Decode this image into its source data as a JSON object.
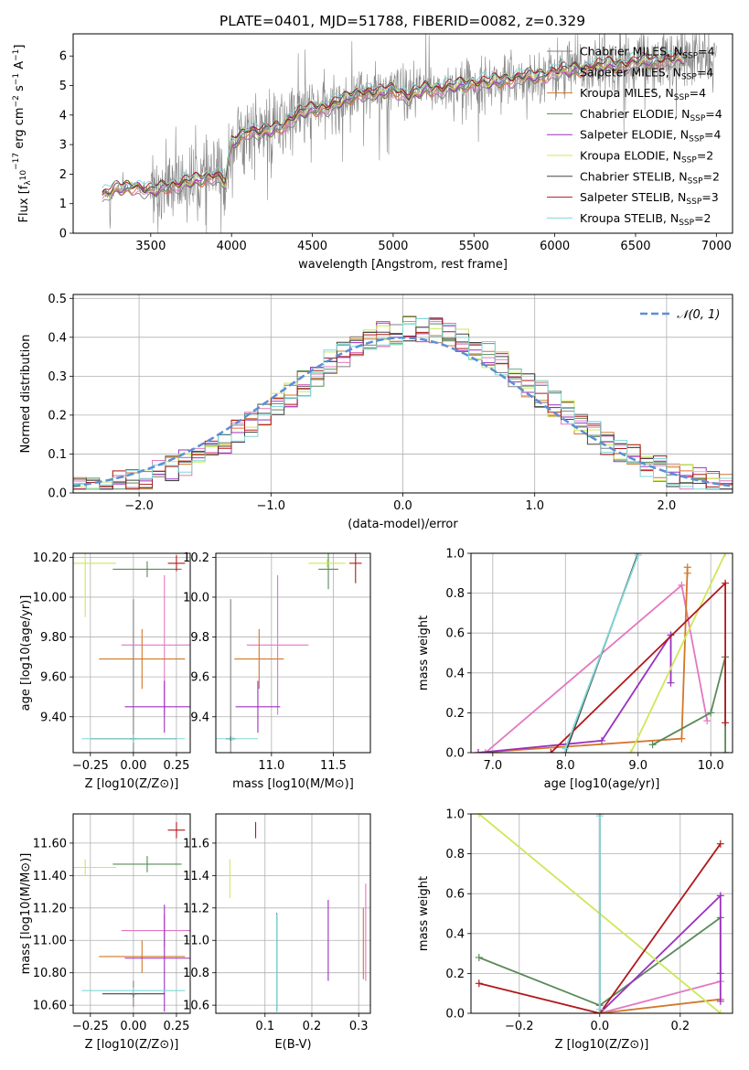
{
  "title": "PLATE=0401, MJD=51788, FIBERID=0082, z=0.329",
  "models": [
    {
      "key": "chabrier_miles",
      "label": "Chabrier MILES, N",
      "sub": "SSP",
      "tail": "=4",
      "color": "#808080"
    },
    {
      "key": "salpeter_miles",
      "label": "Salpeter MILES, N",
      "sub": "SSP",
      "tail": "=4",
      "color": "#e377c2"
    },
    {
      "key": "kroupa_miles",
      "label": "Kroupa MILES, N",
      "sub": "SSP",
      "tail": "=4",
      "color": "#d2772a"
    },
    {
      "key": "chabrier_elodie",
      "label": "Chabrier ELODIE, N",
      "sub": "SSP",
      "tail": "=4",
      "color": "#5a8a5a"
    },
    {
      "key": "salpeter_elodie",
      "label": "Salpeter ELODIE, N",
      "sub": "SSP",
      "tail": "=4",
      "color": "#9b30c0"
    },
    {
      "key": "kroupa_elodie",
      "label": "Kroupa ELODIE, N",
      "sub": "SSP",
      "tail": "=2",
      "color": "#cde85a"
    },
    {
      "key": "chabrier_stelib",
      "label": "Chabrier STELIB, N",
      "sub": "SSP",
      "tail": "=2",
      "color": "#444444"
    },
    {
      "key": "salpeter_stelib",
      "label": "Salpeter STELIB, N",
      "sub": "SSP",
      "tail": "=3",
      "color": "#b0191c"
    },
    {
      "key": "kroupa_stelib",
      "label": "Kroupa STELIB, N",
      "sub": "SSP",
      "tail": "=2",
      "color": "#7fd8d8"
    }
  ],
  "chart_data": [
    {
      "type": "line",
      "id": "spectrum",
      "xlabel": "wavelength [Angstrom, rest frame]",
      "ylabel_parts": [
        "Flux [f",
        "λ",
        "10",
        "−17",
        " erg cm",
        "−2",
        " s",
        "−1",
        " A",
        "−1",
        "]"
      ],
      "xlim": [
        3020,
        7100
      ],
      "ylim": [
        0,
        6.75
      ],
      "xticks": [
        3500,
        4000,
        4500,
        5000,
        5500,
        6000,
        6500,
        7000
      ],
      "yticks": [
        0,
        1,
        2,
        3,
        4,
        5,
        6
      ],
      "model_spectrum": {
        "x": [
          3200,
          3300,
          3400,
          3500,
          3600,
          3700,
          3800,
          3900,
          3960,
          4000,
          4100,
          4200,
          4300,
          4400,
          4500,
          4600,
          4700,
          4800,
          4900,
          5000,
          5100,
          5200,
          5300,
          5400,
          5500,
          5600,
          5700,
          5800,
          5900,
          6000,
          6100,
          6200,
          6300,
          6400,
          6500,
          6600,
          6700,
          6800
        ],
        "y": [
          1.3,
          1.5,
          1.6,
          1.4,
          1.6,
          1.7,
          1.8,
          2.0,
          1.7,
          3.0,
          3.5,
          3.4,
          3.6,
          4.0,
          4.2,
          4.3,
          4.5,
          4.8,
          4.7,
          4.9,
          4.6,
          4.9,
          4.9,
          5.0,
          5.1,
          5.1,
          5.2,
          5.3,
          5.3,
          5.5,
          5.5,
          5.6,
          5.7,
          5.7,
          5.8,
          5.8,
          5.9,
          5.9
        ]
      },
      "data_range": [
        3200,
        7000
      ]
    },
    {
      "type": "line",
      "id": "residuals",
      "xlabel": "(data-model)/error",
      "ylabel": "Normed distribution",
      "xlim": [
        -2.5,
        2.5
      ],
      "ylim": [
        0,
        0.51
      ],
      "xticks": [
        -2,
        -1,
        0,
        1,
        2
      ],
      "yticks": [
        0,
        0.1,
        0.2,
        0.3,
        0.4,
        0.5
      ],
      "legend": "𝒩(0, 1)",
      "gaussian_color": "#5a8fd6"
    },
    {
      "type": "scatter",
      "id": "age_vs_Z",
      "xlabel": "Z [log10(Z/Z⊙)]",
      "ylabel": "age  [log10(age/yr)]",
      "xlim": [
        -0.35,
        0.33
      ],
      "ylim": [
        9.22,
        10.22
      ],
      "xticks": [
        -0.25,
        0,
        0.25
      ],
      "yticks": [
        9.4,
        9.6,
        9.8,
        10.0,
        10.2
      ],
      "points": [
        {
          "m": "chabrier_miles",
          "x": 0.0,
          "y": 9.29,
          "xerr": 0.02,
          "yerr": 0.7
        },
        {
          "m": "salpeter_miles",
          "x": 0.18,
          "y": 9.76,
          "xerr": 0.25,
          "yerr": 0.35
        },
        {
          "m": "kroupa_miles",
          "x": 0.05,
          "y": 9.69,
          "xerr": 0.25,
          "yerr": 0.15
        },
        {
          "m": "chabrier_elodie",
          "x": 0.08,
          "y": 10.14,
          "xerr": 0.2,
          "yerr": 0.04
        },
        {
          "m": "salpeter_elodie",
          "x": 0.18,
          "y": 9.45,
          "xerr": 0.23,
          "yerr": 0.13
        },
        {
          "m": "kroupa_elodie",
          "x": -0.28,
          "y": 10.17,
          "xerr": 0.18,
          "yerr": 0.27
        },
        {
          "m": "chabrier_stelib",
          "x": 0.0,
          "y": 9.29,
          "xerr": 0.25,
          "yerr": 0.01
        },
        {
          "m": "salpeter_stelib",
          "x": 0.25,
          "y": 10.17,
          "xerr": 0.05,
          "yerr": 0.04
        },
        {
          "m": "kroupa_stelib",
          "x": 0.0,
          "y": 9.29,
          "xerr": 0.3,
          "yerr": 0.02
        }
      ]
    },
    {
      "type": "scatter",
      "id": "age_vs_mass",
      "xlabel": "mass [log10(M/M⊙)]",
      "ylabel": "",
      "xlim": [
        10.55,
        11.8
      ],
      "ylim": [
        9.22,
        10.22
      ],
      "xticks": [
        11.0,
        11.5
      ],
      "yticks": [
        9.4,
        9.6,
        9.8,
        10.0,
        10.2
      ],
      "points": [
        {
          "m": "chabrier_miles",
          "x": 10.67,
          "y": 9.29,
          "xerr": 0.02,
          "yerr": 0.7
        },
        {
          "m": "salpeter_miles",
          "x": 11.05,
          "y": 9.76,
          "xerr": 0.25,
          "yerr": 0.35
        },
        {
          "m": "kroupa_miles",
          "x": 10.9,
          "y": 9.69,
          "xerr": 0.2,
          "yerr": 0.15
        },
        {
          "m": "chabrier_elodie",
          "x": 11.46,
          "y": 10.14,
          "xerr": 0.08,
          "yerr": 0.1
        },
        {
          "m": "salpeter_elodie",
          "x": 10.89,
          "y": 9.45,
          "xerr": 0.18,
          "yerr": 0.13
        },
        {
          "m": "kroupa_elodie",
          "x": 11.45,
          "y": 10.17,
          "xerr": 0.15,
          "yerr": 0.02
        },
        {
          "m": "chabrier_stelib",
          "x": 10.67,
          "y": 9.29,
          "xerr": 0.04,
          "yerr": 0.01
        },
        {
          "m": "salpeter_stelib",
          "x": 11.68,
          "y": 10.17,
          "xerr": 0.05,
          "yerr": 0.1
        },
        {
          "m": "kroupa_stelib",
          "x": 10.69,
          "y": 9.29,
          "xerr": 0.2,
          "yerr": 0.01
        }
      ]
    },
    {
      "type": "line",
      "id": "mass_weight_vs_age",
      "xlabel": "age  [log10(age/yr)]",
      "ylabel": "mass weight",
      "xlim": [
        6.7,
        10.3
      ],
      "ylim": [
        0,
        1.0
      ],
      "xticks": [
        7,
        8,
        9,
        10
      ],
      "yticks": [
        0,
        0.2,
        0.4,
        0.6,
        0.8,
        1.0
      ],
      "series": [
        {
          "m": "salpeter_miles",
          "x": [
            6.9,
            9.6,
            9.95
          ],
          "y": [
            0.0,
            0.84,
            0.16
          ]
        },
        {
          "m": "kroupa_miles",
          "x": [
            6.8,
            9.6,
            9.68,
            9.68
          ],
          "y": [
            0.0,
            0.07,
            0.93,
            0.9
          ]
        },
        {
          "m": "chabrier_elodie",
          "x": [
            9.2,
            10.0,
            10.2,
            10.2
          ],
          "y": [
            0.04,
            0.2,
            0.48,
            0.0
          ]
        },
        {
          "m": "salpeter_elodie",
          "x": [
            6.8,
            8.5,
            9.45,
            9.45
          ],
          "y": [
            0.0,
            0.06,
            0.59,
            0.35
          ]
        },
        {
          "m": "kroupa_elodie",
          "x": [
            8.9,
            10.2
          ],
          "y": [
            0.0,
            1.0
          ]
        },
        {
          "m": "chabrier_stelib",
          "x": [
            8.0,
            9.0
          ],
          "y": [
            0.0,
            1.0
          ]
        },
        {
          "m": "salpeter_stelib",
          "x": [
            7.8,
            10.2,
            10.2
          ],
          "y": [
            0.0,
            0.85,
            0.15
          ]
        },
        {
          "m": "kroupa_stelib",
          "x": [
            8.0,
            9.0
          ],
          "y": [
            0.02,
            0.99
          ]
        }
      ]
    },
    {
      "type": "scatter",
      "id": "mass_vs_Z",
      "xlabel": "Z [log10(Z/Z⊙)]",
      "ylabel": "mass [log10(M/M⊙)]",
      "xlim": [
        -0.35,
        0.33
      ],
      "ylim": [
        10.55,
        11.78
      ],
      "xticks": [
        -0.25,
        0,
        0.25
      ],
      "yticks": [
        10.6,
        10.8,
        11.0,
        11.2,
        11.4,
        11.6
      ],
      "points": [
        {
          "m": "chabrier_miles",
          "x": 0.0,
          "y": 10.67,
          "xerr": 0.02,
          "yerr": 0.08
        },
        {
          "m": "salpeter_miles",
          "x": 0.18,
          "y": 11.06,
          "xerr": 0.25,
          "yerr": 0.1
        },
        {
          "m": "kroupa_miles",
          "x": 0.05,
          "y": 10.9,
          "xerr": 0.25,
          "yerr": 0.1
        },
        {
          "m": "chabrier_elodie",
          "x": 0.08,
          "y": 11.47,
          "xerr": 0.2,
          "yerr": 0.05
        },
        {
          "m": "salpeter_elodie",
          "x": 0.18,
          "y": 10.89,
          "xerr": 0.23,
          "yerr": 0.33
        },
        {
          "m": "kroupa_elodie",
          "x": -0.28,
          "y": 11.45,
          "xerr": 0.18,
          "yerr": 0.05
        },
        {
          "m": "chabrier_stelib",
          "x": 0.0,
          "y": 10.67,
          "xerr": 0.18,
          "yerr": 0.02
        },
        {
          "m": "salpeter_stelib",
          "x": 0.25,
          "y": 11.68,
          "xerr": 0.05,
          "yerr": 0.05
        },
        {
          "m": "kroupa_stelib",
          "x": 0.0,
          "y": 10.69,
          "xerr": 0.3,
          "yerr": 0.02
        }
      ]
    },
    {
      "type": "scatter",
      "id": "mass_vs_EBV",
      "xlabel": "E(B-V)",
      "ylabel": "",
      "xlim": [
        -0.005,
        0.325
      ],
      "ylim": [
        10.55,
        11.78
      ],
      "xticks": [
        0.1,
        0.2,
        0.3
      ],
      "yticks": [
        10.6,
        10.8,
        11.0,
        11.2,
        11.4,
        11.6
      ],
      "points": [
        {
          "m": "chabrier_miles",
          "x": 0.125,
          "y": 10.87,
          "xerr": 0,
          "yerr": 0.3
        },
        {
          "m": "salpeter_miles",
          "x": 0.315,
          "y": 11.05,
          "xerr": 0,
          "yerr": 0.3
        },
        {
          "m": "kroupa_miles",
          "x": 0.31,
          "y": 10.98,
          "xerr": 0,
          "yerr": 0.22
        },
        {
          "m": "chabrier_elodie",
          "x": 0.125,
          "y": 10.86,
          "xerr": 0,
          "yerr": 0.3
        },
        {
          "m": "salpeter_elodie",
          "x": 0.235,
          "y": 11.0,
          "xerr": 0,
          "yerr": 0.25
        },
        {
          "m": "kroupa_elodie",
          "x": 0.025,
          "y": 11.38,
          "xerr": 0,
          "yerr": 0.12
        },
        {
          "m": "chabrier_stelib",
          "x": 0.125,
          "y": 10.86,
          "xerr": 0,
          "yerr": 0.3
        },
        {
          "m": "salpeter_stelib",
          "x": 0.08,
          "y": 11.68,
          "xerr": 0,
          "yerr": 0.05
        },
        {
          "m": "kroupa_stelib",
          "x": 0.125,
          "y": 10.86,
          "xerr": 0,
          "yerr": 0.3
        }
      ]
    },
    {
      "type": "line",
      "id": "mass_weight_vs_Z",
      "xlabel": "Z [log10(Z/Z⊙)]",
      "ylabel": "mass weight",
      "xlim": [
        -0.32,
        0.33
      ],
      "ylim": [
        0,
        1.0
      ],
      "xticks": [
        -0.2,
        0,
        0.2
      ],
      "yticks": [
        0,
        0.2,
        0.4,
        0.6,
        0.8,
        1.0
      ],
      "series": [
        {
          "m": "salpeter_miles",
          "x": [
            0.0,
            0.3
          ],
          "y": [
            0.0,
            0.16
          ]
        },
        {
          "m": "kroupa_miles",
          "x": [
            0.0,
            0.3
          ],
          "y": [
            0.0,
            0.07
          ]
        },
        {
          "m": "chabrier_elodie",
          "x": [
            -0.3,
            0.0,
            0.3,
            0.3
          ],
          "y": [
            0.28,
            0.04,
            0.48,
            0.2
          ]
        },
        {
          "m": "salpeter_elodie",
          "x": [
            0.0,
            0.3,
            0.3
          ],
          "y": [
            0.0,
            0.59,
            0.06
          ]
        },
        {
          "m": "kroupa_elodie",
          "x": [
            -0.3,
            0.3
          ],
          "y": [
            1.0,
            0.0
          ]
        },
        {
          "m": "chabrier_stelib",
          "x": [
            0.0,
            0.0
          ],
          "y": [
            0.0,
            1.0
          ]
        },
        {
          "m": "salpeter_stelib",
          "x": [
            -0.3,
            0.0,
            0.3
          ],
          "y": [
            0.15,
            0.0,
            0.85
          ]
        },
        {
          "m": "kroupa_stelib",
          "x": [
            0.0,
            0.0
          ],
          "y": [
            0.02,
            0.99
          ]
        }
      ]
    }
  ]
}
